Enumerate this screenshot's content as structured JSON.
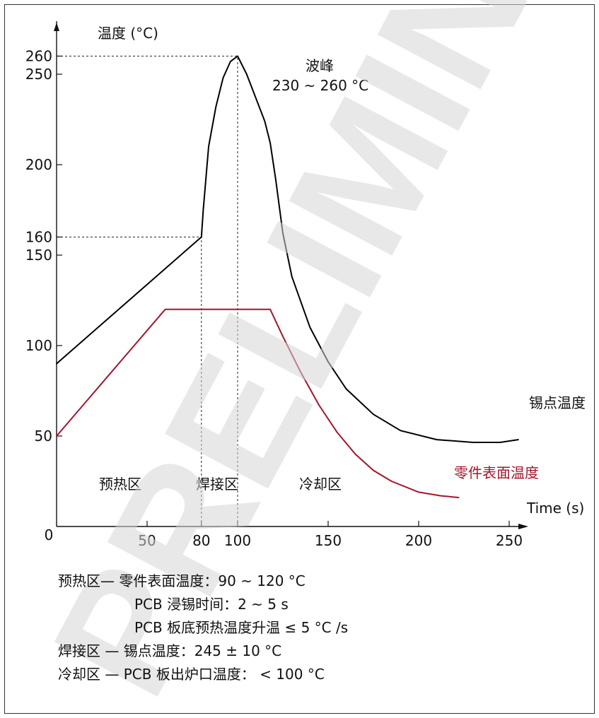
{
  "chart_data": {
    "type": "line",
    "ylabel": "温度 (°C)",
    "xlabel": "Time (s)",
    "xlim": [
      0,
      260
    ],
    "ylim": [
      0,
      265
    ],
    "x_ticks": [
      50,
      80,
      100,
      150,
      200,
      250
    ],
    "y_ticks": [
      50,
      100,
      150,
      160,
      200,
      250,
      260
    ],
    "origin_label": "0",
    "series": [
      {
        "name": "锡点温度",
        "color": "#000000",
        "points": [
          [
            0,
            90
          ],
          [
            80,
            160
          ],
          [
            81,
            175
          ],
          [
            84,
            210
          ],
          [
            88,
            232
          ],
          [
            92,
            248
          ],
          [
            96,
            257
          ],
          [
            100,
            260
          ],
          [
            105,
            250
          ],
          [
            110,
            237
          ],
          [
            115,
            224
          ],
          [
            118,
            212
          ],
          [
            121,
            192
          ],
          [
            125,
            162
          ],
          [
            130,
            138
          ],
          [
            140,
            110
          ],
          [
            150,
            91
          ],
          [
            160,
            76
          ],
          [
            175,
            62
          ],
          [
            190,
            53
          ],
          [
            210,
            48
          ],
          [
            230,
            46.5
          ],
          [
            245,
            46.5
          ],
          [
            255,
            48
          ]
        ]
      },
      {
        "name": "零件表面温度",
        "color": "#a3162b",
        "points": [
          [
            0,
            50
          ],
          [
            60,
            120
          ],
          [
            118,
            120
          ],
          [
            125,
            105
          ],
          [
            135,
            85
          ],
          [
            145,
            67
          ],
          [
            155,
            52
          ],
          [
            165,
            40
          ],
          [
            175,
            31
          ],
          [
            185,
            25
          ],
          [
            200,
            19
          ],
          [
            212,
            17
          ],
          [
            222,
            16
          ]
        ]
      }
    ],
    "annotations": {
      "peak_title": "波峰",
      "peak_range": "230 ~ 260 °C",
      "zones": [
        "预热区",
        "焊接区",
        "冷却区"
      ]
    },
    "reference_lines": [
      {
        "type": "h",
        "y": 260,
        "x_to": 100
      },
      {
        "type": "h",
        "y": 160,
        "x_to": 80
      },
      {
        "type": "v",
        "x": 80,
        "y_to": 160
      },
      {
        "type": "v",
        "x": 100,
        "y_to": 260
      }
    ]
  },
  "notes": [
    {
      "label": "预热区—",
      "text": "零件表面温度：90 ~ 120 °C"
    },
    {
      "label": "",
      "text": "PCB 浸锡时间：2 ~ 5 s"
    },
    {
      "label": "",
      "text": "PCB 板底预热温度升温 ≤ 5 °C /s"
    },
    {
      "label": "焊接区 —",
      "text": "锡点温度：245 ± 10 °C"
    },
    {
      "label": "冷却区 —",
      "text": "PCB 板出炉口温度： < 100 °C"
    }
  ],
  "watermark": "PRELIMINARY"
}
